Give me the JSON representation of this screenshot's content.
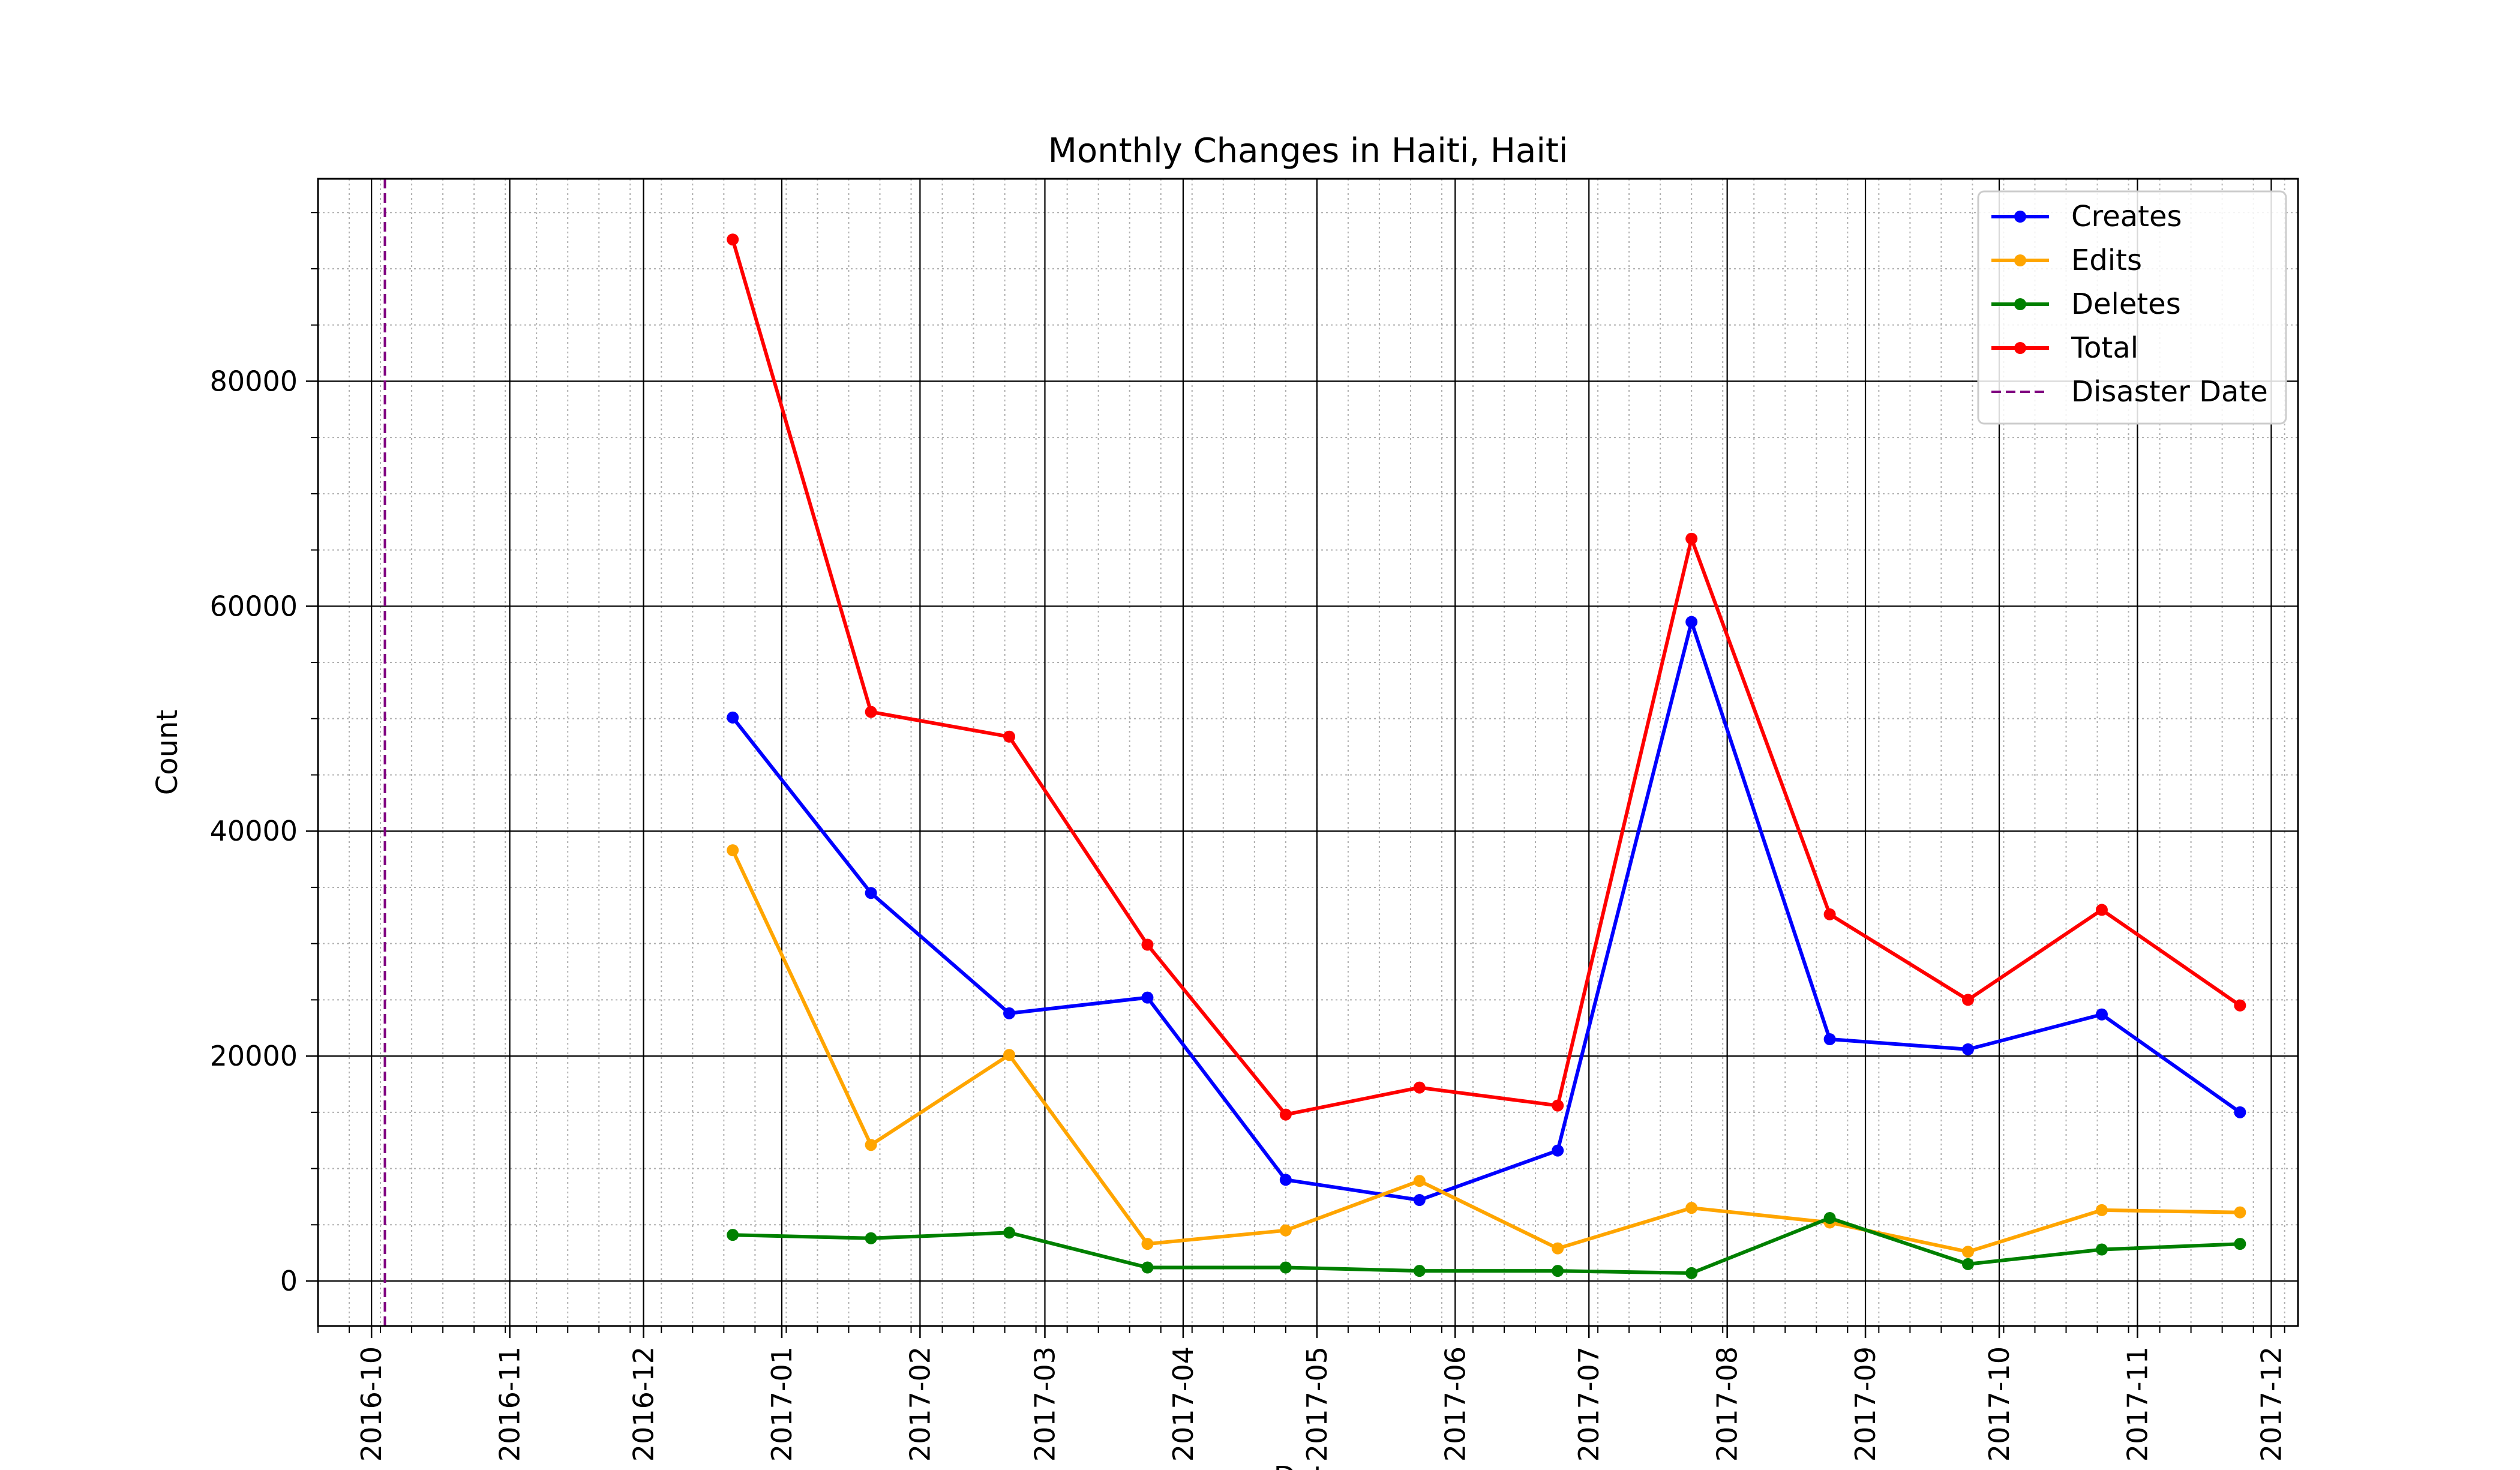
{
  "chart_data": {
    "type": "line",
    "title": "Monthly Changes in Haiti, Haiti",
    "xlabel": "Date",
    "ylabel": "Count",
    "x_axis_type": "date",
    "xlim": [
      "2016-09-19",
      "2017-12-07"
    ],
    "ylim": [
      -4000,
      98000
    ],
    "x_ticks": [
      "2016-10",
      "2016-11",
      "2016-12",
      "2017-01",
      "2017-02",
      "2017-03",
      "2017-04",
      "2017-05",
      "2017-06",
      "2017-07",
      "2017-08",
      "2017-09",
      "2017-10",
      "2017-11",
      "2017-12"
    ],
    "y_ticks": [
      0,
      20000,
      40000,
      60000,
      80000
    ],
    "grid": "major and minor",
    "legend_position": "top-right",
    "x": [
      "2016-12-21",
      "2017-01-21",
      "2017-02-21",
      "2017-03-24",
      "2017-04-24",
      "2017-05-24",
      "2017-06-24",
      "2017-07-24",
      "2017-08-24",
      "2017-09-24",
      "2017-10-24",
      "2017-11-24"
    ],
    "series": [
      {
        "name": "Creates",
        "color": "#0000ff",
        "values": [
          50100,
          34500,
          23800,
          25200,
          9000,
          7200,
          11600,
          58600,
          21500,
          20600,
          23700,
          15000
        ]
      },
      {
        "name": "Edits",
        "color": "#ffa500",
        "values": [
          38300,
          12100,
          20100,
          3300,
          4500,
          8900,
          2900,
          6500,
          5200,
          2600,
          6300,
          6100
        ]
      },
      {
        "name": "Deletes",
        "color": "#008000",
        "values": [
          4100,
          3800,
          4300,
          1200,
          1200,
          900,
          900,
          700,
          5600,
          1500,
          2800,
          3300
        ]
      },
      {
        "name": "Total",
        "color": "#ff0000",
        "values": [
          92600,
          50600,
          48400,
          29900,
          14800,
          17200,
          15600,
          66000,
          32600,
          25000,
          33000,
          24500
        ]
      }
    ],
    "reference_line": {
      "name": "Disaster Date",
      "date": "2016-10-04",
      "color": "#800080",
      "style": "dashed"
    }
  }
}
